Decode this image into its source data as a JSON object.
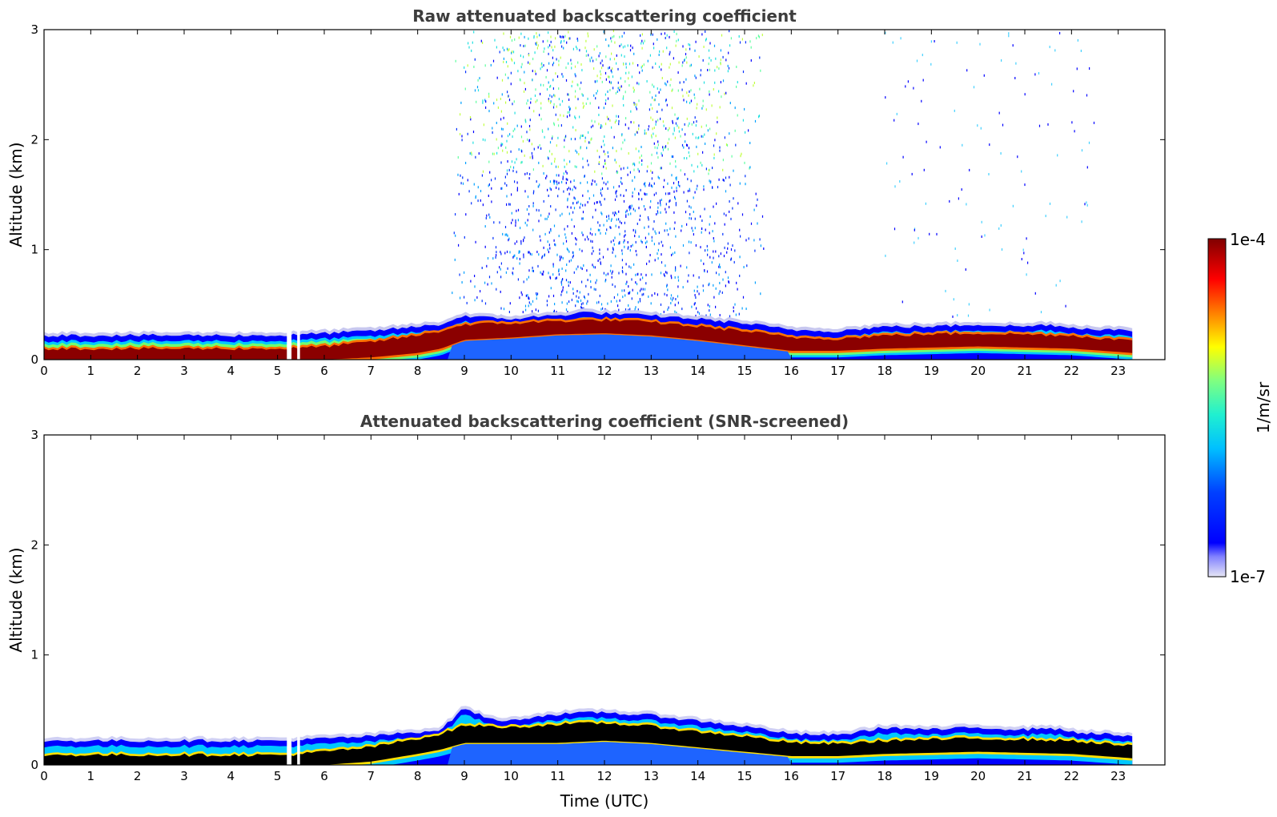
{
  "chart_data": [
    {
      "type": "heatmap",
      "title": "Raw attenuated backscattering coefficient",
      "xlabel": "",
      "ylabel": "Altitude (km)",
      "xlim": [
        0,
        24
      ],
      "ylim": [
        0,
        3
      ],
      "x_ticks": [
        "0",
        "1",
        "2",
        "3",
        "4",
        "5",
        "6",
        "7",
        "8",
        "9",
        "10",
        "11",
        "12",
        "13",
        "14",
        "15",
        "16",
        "17",
        "18",
        "19",
        "20",
        "21",
        "22",
        "23"
      ],
      "y_ticks": [
        "0",
        "1",
        "2",
        "3"
      ],
      "data_end_time": 23.3,
      "data_gaps": [
        [
          5.2,
          5.3
        ],
        [
          5.42,
          5.48
        ]
      ],
      "layer_top_km": {
        "time": [
          0,
          5.2,
          6,
          7,
          8,
          8.5,
          9,
          9.5,
          10,
          10.5,
          11,
          11.5,
          12,
          12.5,
          13,
          14,
          15,
          15.5,
          16,
          17,
          18,
          19,
          20,
          21,
          21.5,
          22,
          23,
          23.3
        ],
        "altitude": [
          0.22,
          0.22,
          0.24,
          0.26,
          0.3,
          0.32,
          0.4,
          0.38,
          0.37,
          0.39,
          0.4,
          0.43,
          0.42,
          0.41,
          0.4,
          0.37,
          0.33,
          0.3,
          0.27,
          0.26,
          0.3,
          0.3,
          0.32,
          0.3,
          0.32,
          0.29,
          0.27,
          0.25
        ]
      },
      "peak_band_km": {
        "time": [
          0,
          5.2,
          6,
          7,
          8,
          8.5,
          9,
          10,
          11,
          12,
          13,
          14,
          15,
          16,
          17,
          18,
          19,
          20,
          21,
          22,
          23,
          23.3
        ],
        "bottom": [
          0,
          0,
          0,
          0.02,
          0.06,
          0.1,
          0.18,
          0.2,
          0.23,
          0.24,
          0.22,
          0.18,
          0.13,
          0.08,
          0.08,
          0.1,
          0.11,
          0.12,
          0.11,
          0.1,
          0.07,
          0.06
        ],
        "top": [
          0.1,
          0.1,
          0.12,
          0.16,
          0.22,
          0.26,
          0.32,
          0.33,
          0.35,
          0.36,
          0.34,
          0.3,
          0.26,
          0.2,
          0.19,
          0.22,
          0.23,
          0.24,
          0.23,
          0.22,
          0.18,
          0.17
        ]
      },
      "noise_region": {
        "time": [
          8.7,
          15.4
        ],
        "altitude": [
          0.4,
          3.0
        ]
      },
      "colormap": "jet",
      "colorbar": {
        "label": "1/m/sr",
        "max_label": "1e-4",
        "min_label": "1e-7",
        "scale": "log",
        "range": [
          1e-07,
          0.0001
        ]
      }
    },
    {
      "type": "heatmap",
      "title": "Attenuated backscattering coefficient (SNR-screened)",
      "xlabel": "Time (UTC)",
      "ylabel": "Altitude (km)",
      "xlim": [
        0,
        24
      ],
      "ylim": [
        0,
        3
      ],
      "x_ticks": [
        "0",
        "1",
        "2",
        "3",
        "4",
        "5",
        "6",
        "7",
        "8",
        "9",
        "10",
        "11",
        "12",
        "13",
        "14",
        "15",
        "16",
        "17",
        "18",
        "19",
        "20",
        "21",
        "22",
        "23"
      ],
      "y_ticks": [
        "0",
        "1",
        "2",
        "3"
      ],
      "data_end_time": 23.3,
      "data_gaps": [
        [
          5.2,
          5.3
        ],
        [
          5.42,
          5.48
        ]
      ],
      "saturated_color": "#000000",
      "layer_top_km": {
        "time": [
          0,
          5.2,
          6,
          7,
          8,
          8.5,
          9,
          9.5,
          10,
          10.5,
          11,
          11.5,
          12,
          12.5,
          13,
          14,
          15,
          15.5,
          16,
          17,
          18,
          19,
          20,
          21,
          21.5,
          22,
          23,
          23.3
        ],
        "altitude": [
          0.22,
          0.22,
          0.24,
          0.26,
          0.3,
          0.32,
          0.52,
          0.42,
          0.4,
          0.44,
          0.46,
          0.47,
          0.48,
          0.46,
          0.45,
          0.4,
          0.35,
          0.32,
          0.28,
          0.27,
          0.34,
          0.32,
          0.34,
          0.32,
          0.34,
          0.3,
          0.27,
          0.25
        ]
      },
      "peak_band_km": {
        "time": [
          0,
          5.2,
          6,
          7,
          8,
          8.5,
          9,
          10,
          11,
          12,
          13,
          14,
          15,
          16,
          17,
          18,
          19,
          20,
          21,
          22,
          23,
          23.3
        ],
        "bottom": [
          0,
          0,
          0,
          0.03,
          0.1,
          0.14,
          0.2,
          0.2,
          0.2,
          0.22,
          0.2,
          0.16,
          0.12,
          0.08,
          0.08,
          0.1,
          0.11,
          0.12,
          0.11,
          0.1,
          0.07,
          0.06
        ],
        "top": [
          0.09,
          0.09,
          0.12,
          0.16,
          0.24,
          0.28,
          0.36,
          0.34,
          0.37,
          0.38,
          0.35,
          0.3,
          0.26,
          0.2,
          0.19,
          0.22,
          0.23,
          0.24,
          0.23,
          0.22,
          0.18,
          0.17
        ]
      },
      "colormap": "jet",
      "colorbar": {
        "label": "1/m/sr",
        "max_label": "1e-4",
        "min_label": "1e-7",
        "scale": "log",
        "range": [
          1e-07,
          0.0001
        ]
      }
    }
  ],
  "colorbar": {
    "label": "1/m/sr",
    "max_label": "1e-4",
    "min_label": "1e-7"
  }
}
